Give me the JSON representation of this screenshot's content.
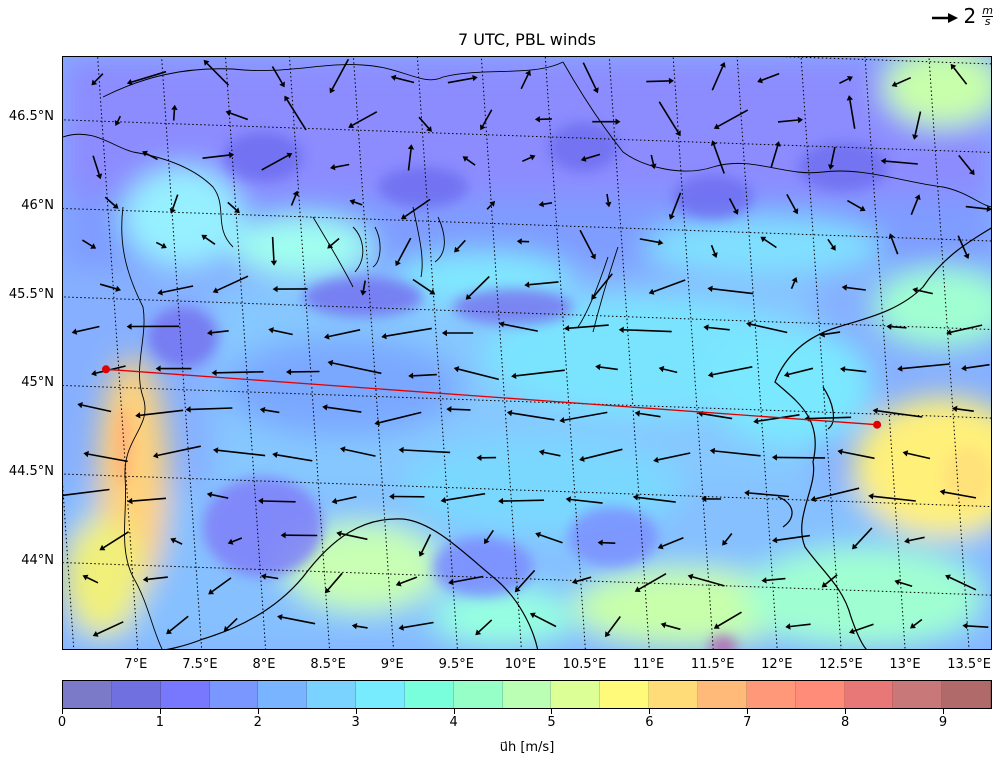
{
  "title": "7 UTC, PBL winds",
  "quiver_key": {
    "value": "2",
    "unit_num": "m",
    "unit_den": "s"
  },
  "map": {
    "lat_labels": [
      "46.5°N",
      "46°N",
      "45.5°N",
      "45°N",
      "44.5°N",
      "44°N"
    ],
    "lon_labels": [
      "7°E",
      "7.5°E",
      "8°E",
      "8.5°E",
      "9°E",
      "9.5°E",
      "10°E",
      "10.5°E",
      "11°E",
      "11.5°E",
      "12°E",
      "12.5°E",
      "13°E",
      "13.5°E"
    ],
    "transect": {
      "start": {
        "lon": 6.9,
        "lat": 45.1
      },
      "end": {
        "lon": 12.9,
        "lat": 44.94
      },
      "color": "#e00000"
    }
  },
  "colorbar": {
    "label": "u⃗h [m/s]",
    "ticks": [
      "0",
      "1",
      "2",
      "3",
      "4",
      "5",
      "6",
      "7",
      "8",
      "9"
    ],
    "colors": [
      "#7a7ac8",
      "#7070e0",
      "#7878ff",
      "#7a96ff",
      "#78b4ff",
      "#7ad2ff",
      "#78ecff",
      "#7affdc",
      "#96ffc8",
      "#baffb4",
      "#dcff96",
      "#fffa7a",
      "#ffdc78",
      "#ffb978",
      "#ff9878",
      "#ff8c78",
      "#e87878",
      "#c87878",
      "#b06a6a"
    ]
  }
}
